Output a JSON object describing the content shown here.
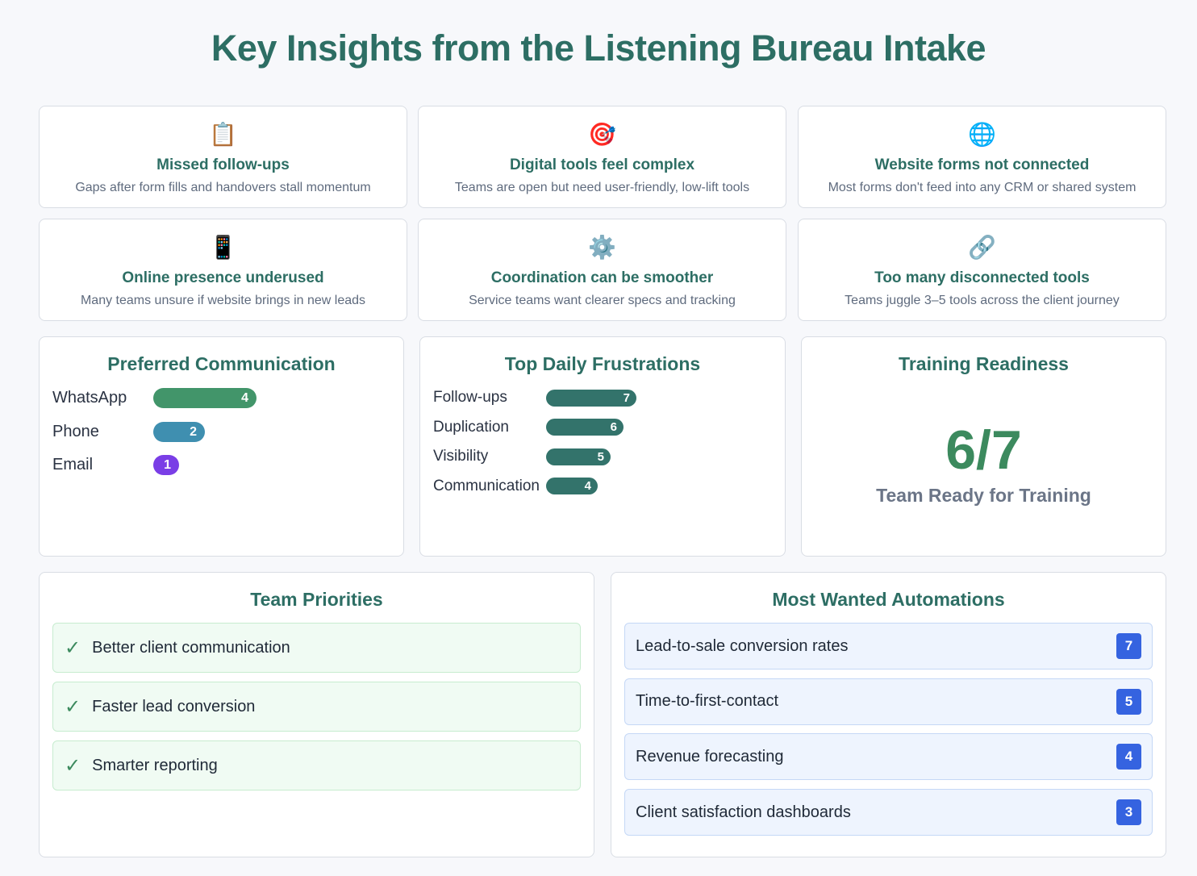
{
  "title": "Key Insights from the Listening Bureau Intake",
  "insights": [
    {
      "icon": "📋",
      "icon_name": "clipboard-icon",
      "title": "Missed follow-ups",
      "text": "Gaps after form fills and handovers stall momentum"
    },
    {
      "icon": "🎯",
      "icon_name": "target-icon",
      "title": "Digital tools feel complex",
      "text": "Teams are open but need user-friendly, low-lift tools"
    },
    {
      "icon": "🌐",
      "icon_name": "globe-icon",
      "title": "Website forms not connected",
      "text": "Most forms don't feed into any CRM or shared system"
    },
    {
      "icon": "📱",
      "icon_name": "phone-icon",
      "title": "Online presence underused",
      "text": "Many teams unsure if website brings in new leads"
    },
    {
      "icon": "⚙️",
      "icon_name": "gear-icon",
      "title": "Coordination can be smoother",
      "text": "Service teams want clearer specs and tracking"
    },
    {
      "icon": "🔗",
      "icon_name": "link-icon",
      "title": "Too many disconnected tools",
      "text": "Teams juggle 3–5 tools across the client journey"
    }
  ],
  "chart_data": [
    {
      "type": "bar",
      "title": "Preferred Communication",
      "categories": [
        "WhatsApp",
        "Phone",
        "Email"
      ],
      "values": [
        4,
        2,
        1
      ],
      "colors": [
        "#42956a",
        "#3f8fb0",
        "#7a3ee6"
      ]
    },
    {
      "type": "bar",
      "title": "Top Daily Frustrations",
      "categories": [
        "Follow-ups",
        "Duplication",
        "Visibility",
        "Communication"
      ],
      "values": [
        7,
        6,
        5,
        4
      ],
      "colors": [
        "#33736b"
      ]
    }
  ],
  "training": {
    "title": "Training Readiness",
    "value": "6/7",
    "label": "Team Ready for Training"
  },
  "priorities": {
    "title": "Team Priorities",
    "items": [
      "Better client communication",
      "Faster lead conversion",
      "Smarter reporting"
    ]
  },
  "automations": {
    "title": "Most Wanted Automations",
    "items": [
      {
        "label": "Lead-to-sale conversion rates",
        "count": "7"
      },
      {
        "label": "Time-to-first-contact",
        "count": "5"
      },
      {
        "label": "Revenue forecasting",
        "count": "4"
      },
      {
        "label": "Client satisfaction dashboards",
        "count": "3"
      }
    ]
  }
}
